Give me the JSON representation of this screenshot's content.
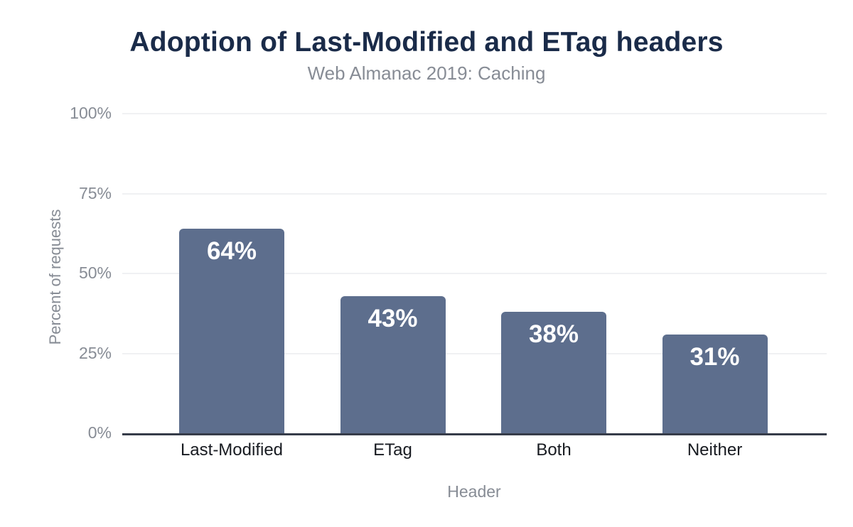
{
  "chart_data": {
    "type": "bar",
    "title": "Adoption of Last-Modified and ETag headers",
    "subtitle": "Web Almanac 2019: Caching",
    "xlabel": "Header",
    "ylabel": "Percent of requests",
    "categories": [
      "Last-Modified",
      "ETag",
      "Both",
      "Neither"
    ],
    "values": [
      64,
      43,
      38,
      31
    ],
    "value_labels": [
      "64%",
      "43%",
      "38%",
      "31%"
    ],
    "ylim": [
      0,
      100
    ],
    "yticks": [
      0,
      25,
      50,
      75,
      100
    ],
    "ytick_labels": [
      "0%",
      "25%",
      "50%",
      "75%",
      "100%"
    ],
    "grid": true,
    "legend": false,
    "colors": {
      "bar": "#5d6e8d",
      "bar_value_label": "#ffffff",
      "title": "#1a2b49",
      "subtitle": "#878c95",
      "axis_text": "#878c95",
      "category_text": "#181b21",
      "gridline": "#f0f1f3",
      "baseline": "#363c49",
      "background": "#ffffff"
    }
  }
}
